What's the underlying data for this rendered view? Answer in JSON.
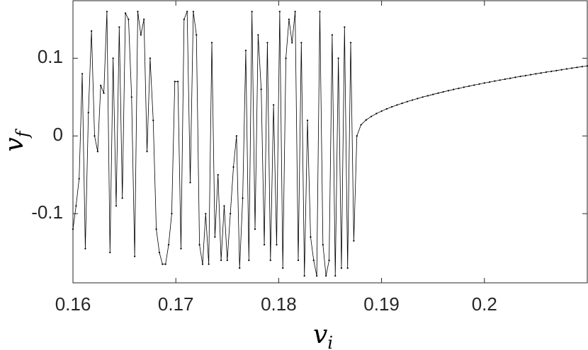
{
  "chart_data": {
    "type": "line",
    "xlabel": {
      "text": "v",
      "subscript": "i"
    },
    "ylabel": {
      "text": "v",
      "subscript": "f"
    },
    "xlim": [
      0.16,
      0.21
    ],
    "xticks": [
      0.16,
      0.17,
      0.18,
      0.19,
      0.2
    ],
    "ylim": [
      -0.189,
      0.174
    ],
    "yticks": [
      -0.1,
      0,
      0.1
    ],
    "grid": false,
    "series": [
      {
        "color": "#000000",
        "x": [
          0.16,
          0.1603,
          0.1606,
          0.1609,
          0.1612,
          0.1615,
          0.1618,
          0.1621,
          0.1624,
          0.1627,
          0.163,
          0.1633,
          0.1636,
          0.1639,
          0.1642,
          0.1645,
          0.1648,
          0.1651,
          0.1654,
          0.1657,
          0.166,
          0.1663,
          0.1666,
          0.1669,
          0.1672,
          0.1675,
          0.1678,
          0.1681,
          0.1684,
          0.1687,
          0.169,
          0.1693,
          0.1696,
          0.1699,
          0.1702,
          0.1705,
          0.1708,
          0.1711,
          0.1714,
          0.1717,
          0.172,
          0.1723,
          0.1726,
          0.1729,
          0.1732,
          0.1735,
          0.1738,
          0.1741,
          0.1744,
          0.1747,
          0.175,
          0.1753,
          0.1756,
          0.1759,
          0.1762,
          0.1765,
          0.1768,
          0.1771,
          0.1774,
          0.1777,
          0.178,
          0.1783,
          0.1786,
          0.1789,
          0.1792,
          0.1795,
          0.1798,
          0.1801,
          0.1804,
          0.1807,
          0.181,
          0.1813,
          0.1816,
          0.1819,
          0.1822,
          0.1825,
          0.1828,
          0.1831,
          0.1834,
          0.1837,
          0.184,
          0.1843,
          0.1846,
          0.1849,
          0.1852,
          0.1855,
          0.1858,
          0.1861,
          0.1864,
          0.1867,
          0.187,
          0.1873,
          0.1876,
          0.188,
          0.1885,
          0.189,
          0.1895,
          0.19,
          0.1905,
          0.191,
          0.1915,
          0.192,
          0.1925,
          0.193,
          0.1935,
          0.194,
          0.1945,
          0.195,
          0.1955,
          0.196,
          0.1965,
          0.197,
          0.1975,
          0.198,
          0.1985,
          0.199,
          0.1995,
          0.2,
          0.2005,
          0.201,
          0.2015,
          0.202,
          0.2025,
          0.203,
          0.2035,
          0.204,
          0.2045,
          0.205,
          0.2055,
          0.206,
          0.2065,
          0.207,
          0.2075,
          0.208,
          0.2085,
          0.209,
          0.2095,
          0.21
        ],
        "values": [
          -0.12,
          -0.09,
          -0.055,
          0.08,
          -0.145,
          0.03,
          0.135,
          0.0,
          -0.02,
          0.065,
          0.055,
          0.16,
          -0.15,
          0.1,
          -0.09,
          0.14,
          -0.08,
          0.158,
          0.15,
          0.05,
          -0.155,
          0.16,
          0.13,
          0.15,
          -0.02,
          0.1,
          0.02,
          -0.12,
          -0.15,
          -0.165,
          -0.165,
          -0.14,
          -0.1,
          0.07,
          0.07,
          -0.145,
          0.15,
          0.16,
          -0.06,
          0.16,
          0.13,
          -0.14,
          -0.165,
          -0.1,
          -0.165,
          0.12,
          -0.13,
          -0.05,
          -0.16,
          -0.09,
          -0.16,
          -0.1,
          -0.04,
          0.0,
          -0.17,
          -0.08,
          0.11,
          -0.16,
          0.16,
          -0.12,
          0.13,
          0.06,
          -0.14,
          0.12,
          -0.16,
          0.04,
          -0.14,
          0.16,
          -0.17,
          0.1,
          0.15,
          0.12,
          0.16,
          -0.16,
          0.12,
          -0.18,
          0.02,
          -0.13,
          -0.16,
          -0.18,
          0.16,
          -0.14,
          -0.18,
          -0.16,
          0.13,
          -0.18,
          0.1,
          -0.17,
          0.14,
          -0.17,
          0.12,
          -0.135,
          0.0,
          0.0143,
          0.0206,
          0.0251,
          0.0288,
          0.0319,
          0.0348,
          0.0374,
          0.0398,
          0.042,
          0.0442,
          0.0462,
          0.0481,
          0.05,
          0.0517,
          0.0534,
          0.0551,
          0.0567,
          0.0582,
          0.0598,
          0.0612,
          0.0627,
          0.0641,
          0.0654,
          0.0668,
          0.0681,
          0.0693,
          0.0706,
          0.0718,
          0.073,
          0.0742,
          0.0754,
          0.0766,
          0.0777,
          0.0788,
          0.0799,
          0.081,
          0.0821,
          0.0831,
          0.0841,
          0.0852,
          0.0862,
          0.0872,
          0.0882,
          0.0892,
          0.0901
        ]
      }
    ]
  }
}
